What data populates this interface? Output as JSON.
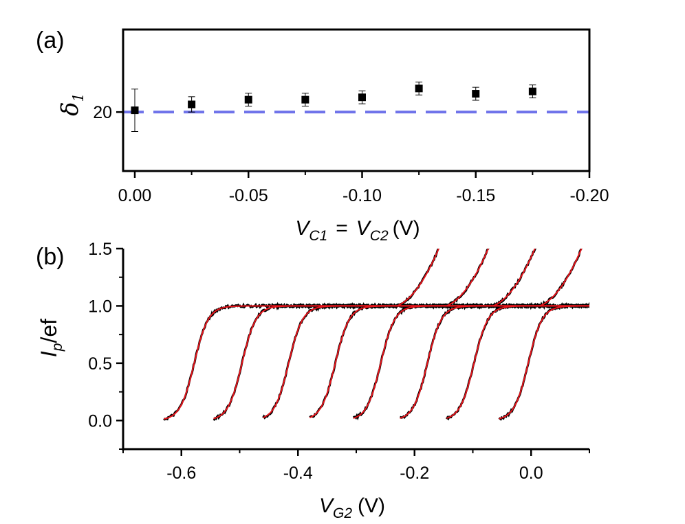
{
  "chart_data": [
    {
      "type": "scatter",
      "panel_label": "(a)",
      "title": "",
      "ylabel": {
        "symbol": "δ",
        "subscript": "1"
      },
      "xlabel": {
        "v1": "V",
        "s1": "C1",
        "eq": "=",
        "v2": "V",
        "s2": "C2",
        "unit": "(V)"
      },
      "xlim": [
        0.0,
        -0.2
      ],
      "ylim": [
        10,
        34
      ],
      "xticks": [
        {
          "value": 0.0,
          "label": "0.00"
        },
        {
          "value": -0.05,
          "label": "-0.05"
        },
        {
          "value": -0.1,
          "label": "-0.10"
        },
        {
          "value": -0.15,
          "label": "-0.15"
        },
        {
          "value": -0.2,
          "label": "-0.20"
        }
      ],
      "yticks": [
        {
          "value": 20,
          "label": "20"
        }
      ],
      "points": [
        {
          "x": 0.0,
          "y": 20.3,
          "err": 3.6
        },
        {
          "x": -0.025,
          "y": 21.3,
          "err": 1.3
        },
        {
          "x": -0.05,
          "y": 22.1,
          "err": 1.1
        },
        {
          "x": -0.075,
          "y": 22.1,
          "err": 1.1
        },
        {
          "x": -0.1,
          "y": 22.5,
          "err": 1.1
        },
        {
          "x": -0.125,
          "y": 24.0,
          "err": 1.1
        },
        {
          "x": -0.15,
          "y": 23.1,
          "err": 1.1
        },
        {
          "x": -0.175,
          "y": 23.5,
          "err": 1.1
        }
      ],
      "reference_line": {
        "y": 20,
        "style": "dashed",
        "color": "#6f73ea"
      },
      "marker_color": "#000000"
    },
    {
      "type": "line",
      "panel_label": "(b)",
      "title": "",
      "ylabel": {
        "v": "I",
        "s": "p",
        "rest": "/ef"
      },
      "xlabel": {
        "v": "V",
        "s": "G2",
        "unit": "(V)"
      },
      "xlim": [
        -0.7,
        0.1
      ],
      "ylim": [
        -0.25,
        1.5
      ],
      "xticks": [
        {
          "value": -0.6,
          "label": "-0.6"
        },
        {
          "value": -0.4,
          "label": "-0.4"
        },
        {
          "value": -0.2,
          "label": "-0.2"
        },
        {
          "value": 0.0,
          "label": "0.0"
        }
      ],
      "yticks": [
        {
          "value": 0.0,
          "label": "0.0"
        },
        {
          "value": 0.5,
          "label": "0.5"
        },
        {
          "value": 1.0,
          "label": "1.0"
        },
        {
          "value": 1.5,
          "label": "1.5"
        }
      ],
      "series_colors": {
        "data": "#000000",
        "fit": "#e8141b"
      },
      "curves": [
        {
          "x_start": -0.63,
          "x_mid": -0.578,
          "x_upturn": -0.23
        },
        {
          "x_start": -0.545,
          "x_mid": -0.496,
          "x_upturn": -0.145
        },
        {
          "x_start": -0.46,
          "x_mid": -0.416,
          "x_upturn": -0.065
        },
        {
          "x_start": -0.38,
          "x_mid": -0.336,
          "x_upturn": 0.015
        },
        {
          "x_start": -0.305,
          "x_mid": -0.258,
          "x_upturn": 0.098
        },
        {
          "x_start": -0.225,
          "x_mid": -0.178,
          "x_upturn": null
        },
        {
          "x_start": -0.145,
          "x_mid": -0.098,
          "x_upturn": null
        },
        {
          "x_start": -0.055,
          "x_mid": -0.005,
          "x_upturn": null
        }
      ],
      "plateau": 1.0
    }
  ]
}
